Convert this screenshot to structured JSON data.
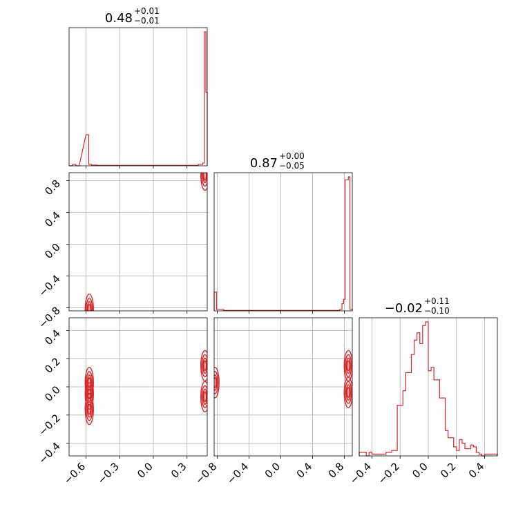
{
  "chart_data": {
    "type": "corner",
    "color": "#d62728",
    "parameters": [
      {
        "title": {
          "value": "0.48",
          "plus": "+0.01",
          "minus": "−0.01"
        },
        "range": [
          -0.75,
          0.48
        ],
        "ticks": [
          -0.6,
          -0.3,
          0.0,
          0.3
        ],
        "tick_labels": [
          "−0.6",
          "−0.3",
          "0.0",
          "0.3"
        ]
      },
      {
        "title": {
          "value": "0.87",
          "plus": "+0.00",
          "minus": "−0.05"
        },
        "range": [
          -0.84,
          0.9
        ],
        "ticks": [
          -0.8,
          -0.4,
          0.0,
          0.4,
          0.8
        ],
        "tick_labels": [
          "−0.8",
          "−0.4",
          "0.0",
          "0.4",
          "0.8"
        ]
      },
      {
        "title": {
          "value": "−0.02",
          "plus": "+0.11",
          "minus": "−0.10"
        },
        "range": [
          -0.49,
          0.49
        ],
        "ticks": [
          -0.4,
          -0.2,
          0.0,
          0.2,
          0.4
        ],
        "tick_labels": [
          "−0.4",
          "−0.2",
          "0.0",
          "0.2",
          "0.4"
        ]
      }
    ],
    "hist_1d": [
      {
        "param": 0,
        "bins": [
          [
            -0.75,
            -0.72,
            0
          ],
          [
            -0.72,
            -0.69,
            0.01
          ],
          [
            -0.69,
            -0.66,
            0
          ],
          [
            -0.6,
            -0.575,
            0.22
          ],
          [
            -0.575,
            -0.55,
            0.01
          ],
          [
            -0.55,
            -0.5,
            0.005
          ],
          [
            -0.5,
            0.4,
            0.003
          ],
          [
            0.4,
            0.44,
            0.01
          ],
          [
            0.44,
            0.455,
            0.02
          ],
          [
            0.455,
            0.468,
            0.95
          ],
          [
            0.468,
            0.48,
            0.52
          ]
        ]
      },
      {
        "param": 1,
        "bins": [
          [
            -0.84,
            -0.81,
            0.13
          ],
          [
            -0.81,
            -0.72,
            0.01
          ],
          [
            -0.72,
            0.74,
            0.003
          ],
          [
            0.74,
            0.77,
            0.01
          ],
          [
            0.77,
            0.79,
            0.05
          ],
          [
            0.79,
            0.81,
            0.08
          ],
          [
            0.81,
            0.85,
            0.91
          ],
          [
            0.85,
            0.87,
            0.93
          ],
          [
            0.87,
            0.9,
            0.01
          ]
        ]
      },
      {
        "param": 2,
        "bins": [
          [
            -0.49,
            -0.44,
            0.02
          ],
          [
            -0.44,
            -0.42,
            0.0
          ],
          [
            -0.42,
            -0.4,
            0.02
          ],
          [
            -0.4,
            -0.38,
            0.01
          ],
          [
            -0.38,
            -0.3,
            0.01
          ],
          [
            -0.3,
            -0.26,
            0.02
          ],
          [
            -0.26,
            -0.24,
            0.03
          ],
          [
            -0.24,
            -0.22,
            0.03
          ],
          [
            -0.22,
            -0.2,
            0.28
          ],
          [
            -0.2,
            -0.18,
            0.28
          ],
          [
            -0.18,
            -0.16,
            0.36
          ],
          [
            -0.16,
            -0.14,
            0.46
          ],
          [
            -0.14,
            -0.12,
            0.46
          ],
          [
            -0.12,
            -0.1,
            0.56
          ],
          [
            -0.1,
            -0.08,
            0.64
          ],
          [
            -0.08,
            -0.06,
            0.68
          ],
          [
            -0.06,
            -0.04,
            0.62
          ],
          [
            -0.04,
            -0.02,
            0.72
          ],
          [
            -0.02,
            0.0,
            0.74
          ],
          [
            0.0,
            0.02,
            0.47
          ],
          [
            0.02,
            0.04,
            0.49
          ],
          [
            0.04,
            0.06,
            0.42
          ],
          [
            0.06,
            0.08,
            0.42
          ],
          [
            0.08,
            0.1,
            0.32
          ],
          [
            0.1,
            0.12,
            0.32
          ],
          [
            0.12,
            0.14,
            0.14
          ],
          [
            0.14,
            0.16,
            0.1
          ],
          [
            0.16,
            0.18,
            0.1
          ],
          [
            0.18,
            0.2,
            0.05
          ],
          [
            0.2,
            0.22,
            0.03
          ],
          [
            0.22,
            0.24,
            0.09
          ],
          [
            0.24,
            0.26,
            0.07
          ],
          [
            0.26,
            0.28,
            0.04
          ],
          [
            0.28,
            0.3,
            0.04
          ],
          [
            0.3,
            0.32,
            0.06
          ],
          [
            0.32,
            0.34,
            0.05
          ],
          [
            0.34,
            0.36,
            0.02
          ],
          [
            0.36,
            0.38,
            0.01
          ],
          [
            0.38,
            0.4,
            0.0
          ],
          [
            0.4,
            0.42,
            0.01
          ],
          [
            0.42,
            0.49,
            0.01
          ]
        ]
      }
    ],
    "hist_2d": [
      {
        "x": 0,
        "y": 1,
        "clusters": [
          [
            0.46,
            0.87
          ],
          [
            -0.57,
            -0.82
          ]
        ]
      },
      {
        "x": 0,
        "y": 2,
        "clusters": [
          [
            0.46,
            -0.07
          ],
          [
            0.46,
            0.15
          ],
          [
            -0.57,
            0.03
          ],
          [
            -0.57,
            -0.05
          ],
          [
            -0.57,
            -0.16
          ]
        ]
      },
      {
        "x": 1,
        "y": 2,
        "clusters": [
          [
            0.85,
            -0.04
          ],
          [
            0.85,
            0.15
          ],
          [
            -0.83,
            0.03
          ]
        ]
      }
    ]
  }
}
